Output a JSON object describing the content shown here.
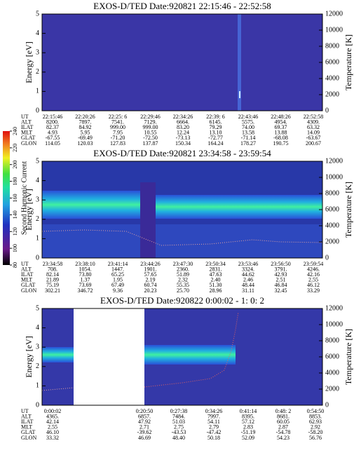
{
  "chart_data": [
    {
      "type": "spectrogram",
      "title": "EXOS-D/TED   Date:920821  22:15:46 - 22:52:58",
      "ylabel": "Energy [eV]",
      "y2label": "Temperature [K]",
      "ylim": [
        0,
        5
      ],
      "yticks": [
        0,
        1,
        2,
        3,
        4,
        5
      ],
      "y2lim": [
        0,
        12000
      ],
      "y2ticks": [
        0,
        2000,
        4000,
        6000,
        8000,
        10000,
        12000
      ],
      "table": [
        {
          "label": "UT",
          "values": [
            "22:15:46",
            "22:20:26",
            "22:25: 6",
            "22:29:46",
            "22:34:26",
            "22:39: 6",
            "22:43:46",
            "22:48:26",
            "22:52:58"
          ]
        },
        {
          "label": "ALT",
          "values": [
            "8200.",
            "7897.",
            "7541.",
            "7129.",
            "6664.",
            "6145.",
            "5575.",
            "4954.",
            "4309."
          ]
        },
        {
          "label": "ILAT",
          "values": [
            "82.37",
            "84.92",
            "999.00",
            "999.00",
            "83.20",
            "79.29",
            "74.00",
            "69.37",
            "63.32"
          ]
        },
        {
          "label": "MLT",
          "values": [
            "4.93",
            "5.95",
            "7.95",
            "10.55",
            "12.24",
            "13.10",
            "13.58",
            "13.88",
            "14.09"
          ]
        },
        {
          "label": "GLAT",
          "values": [
            "-67.55",
            "-69.49",
            "-71.20",
            "-72.50",
            "-73.13",
            "-72.77",
            "-71.14",
            "-68.08",
            "-63.67"
          ]
        },
        {
          "label": "GLON",
          "values": [
            "114.05",
            "120.03",
            "127.83",
            "137.87",
            "150.34",
            "164.24",
            "178.27",
            "190.75",
            "200.67"
          ]
        }
      ]
    },
    {
      "type": "spectrogram",
      "title": "EXOS-D/TED   Date:920821  23:34:58 - 23:59:54",
      "ylabel": "Energy [eV]",
      "y2label": "Temperature [K]",
      "ylim": [
        0,
        5
      ],
      "yticks": [
        0,
        1,
        2,
        3,
        4,
        5
      ],
      "y2lim": [
        0,
        12000
      ],
      "y2ticks": [
        0,
        2000,
        4000,
        6000,
        8000,
        10000,
        12000
      ],
      "colorbar": {
        "label": "Second Harmonic Current",
        "lim": [
          80,
          240
        ],
        "ticks": [
          80,
          100,
          120,
          140,
          160,
          180,
          200,
          220,
          240
        ]
      },
      "table": [
        {
          "label": "UT",
          "values": [
            "23:34:58",
            "23:38:10",
            "23:41:14",
            "23:44:26",
            "23:47:30",
            "23:50:34",
            "23:53:46",
            "23:56:50",
            "23:59:54"
          ]
        },
        {
          "label": "ALT",
          "values": [
            "708.",
            "1054.",
            "1447.",
            "1901.",
            "2360.",
            "2831.",
            "3324.",
            "3791.",
            "4246."
          ]
        },
        {
          "label": "ILAT",
          "values": [
            "82.14",
            "73.80",
            "65.25",
            "57.65",
            "51.89",
            "47.63",
            "44.62",
            "42.93",
            "42.16"
          ]
        },
        {
          "label": "MLT",
          "values": [
            "21.89",
            "1.37",
            "1.95",
            "2.19",
            "2.32",
            "2.40",
            "2.46",
            "2.51",
            "2.55"
          ]
        },
        {
          "label": "GLAT",
          "values": [
            "75.19",
            "73.69",
            "67.49",
            "60.74",
            "55.35",
            "51.30",
            "48.44",
            "46.84",
            "46.12"
          ]
        },
        {
          "label": "GLON",
          "values": [
            "302.21",
            "346.72",
            "9.36",
            "20.23",
            "25.70",
            "28.96",
            "31.11",
            "32.45",
            "33.29"
          ]
        }
      ]
    },
    {
      "type": "spectrogram",
      "title": "EXOS-D/TED   Date:920822  0:00:02 - 1: 0: 2",
      "ylabel": "Energy [eV]",
      "y2label": "Temperature [K]",
      "ylim": [
        0,
        5
      ],
      "yticks": [
        0,
        1,
        2,
        3,
        4,
        5
      ],
      "y2lim": [
        0,
        12000
      ],
      "y2ticks": [
        0,
        2000,
        4000,
        6000,
        8000,
        10000,
        12000
      ],
      "table": [
        {
          "label": "UT",
          "values": [
            "0:00:02",
            "0:20:50",
            "0:27:38",
            "0:34:26",
            "0:41:14",
            "0:48: 2",
            "0:54:50"
          ]
        },
        {
          "label": "ALT",
          "values": [
            "4365.",
            "6857.",
            "7484.",
            "7997.",
            "8395.",
            "8681.",
            "8853."
          ]
        },
        {
          "label": "ILAT",
          "values": [
            "42.14",
            "47.92",
            "51.03",
            "54.11",
            "57.12",
            "60.05",
            "62.93"
          ]
        },
        {
          "label": "MLT",
          "values": [
            "2.55",
            "2.71",
            "2.75",
            "2.79",
            "2.83",
            "2.87",
            "2.92"
          ]
        },
        {
          "label": "GLAT",
          "values": [
            "46.10",
            "-39.62",
            "-43.53",
            "-47.42",
            "-51.19",
            "-54.78",
            "-58.20"
          ]
        },
        {
          "label": "GLON",
          "values": [
            "33.32",
            "46.69",
            "48.40",
            "50.18",
            "52.09",
            "54.23",
            "56.76"
          ]
        }
      ]
    }
  ]
}
